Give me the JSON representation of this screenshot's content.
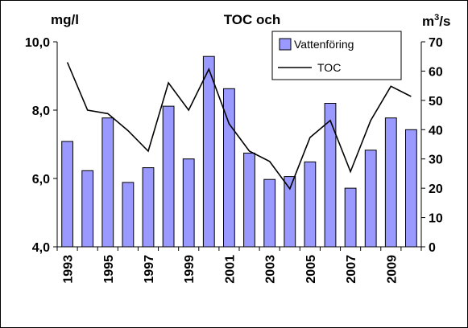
{
  "chart_data": {
    "type": "bar",
    "title": "TOC och",
    "y_left_label": "mg/l",
    "y_right_label_base": "m",
    "y_right_label_sup": "3",
    "y_right_label_tail": "/s",
    "y_left_range": [
      4.0,
      10.0
    ],
    "y_left_ticks": [
      "4,0",
      "6,0",
      "8,0",
      "10,0"
    ],
    "y_left_tick_values": [
      4,
      6,
      8,
      10
    ],
    "y_right_range": [
      0,
      70
    ],
    "y_right_ticks": [
      "0",
      "10",
      "20",
      "30",
      "40",
      "50",
      "60",
      "70"
    ],
    "y_right_tick_values": [
      0,
      10,
      20,
      30,
      40,
      50,
      60,
      70
    ],
    "grid": false,
    "legend_position": "top-right",
    "categories": [
      "1993",
      "1994",
      "1995",
      "1996",
      "1997",
      "1998",
      "1999",
      "2000",
      "2001",
      "2002",
      "2003",
      "2004",
      "2005",
      "2006",
      "2007",
      "2008",
      "2009",
      "2010"
    ],
    "x_tick_labels": [
      "1993",
      "",
      "1995",
      "",
      "1997",
      "",
      "1999",
      "",
      "2001",
      "",
      "2003",
      "",
      "2005",
      "",
      "2007",
      "",
      "2009",
      ""
    ],
    "series": [
      {
        "name": "Vattenföring",
        "kind": "bar",
        "axis": "right",
        "color": "#9999ff",
        "values": [
          36,
          26,
          44,
          22,
          27,
          48,
          30,
          65,
          54,
          32,
          23,
          24,
          29,
          49,
          20,
          33,
          44,
          40
        ]
      },
      {
        "name": "TOC",
        "kind": "line",
        "axis": "left",
        "color": "#000000",
        "values": [
          9.4,
          8.0,
          7.9,
          7.4,
          6.8,
          8.8,
          8.0,
          9.2,
          7.6,
          6.8,
          6.5,
          5.7,
          7.2,
          7.7,
          6.2,
          7.7,
          8.7,
          8.4
        ]
      }
    ]
  }
}
